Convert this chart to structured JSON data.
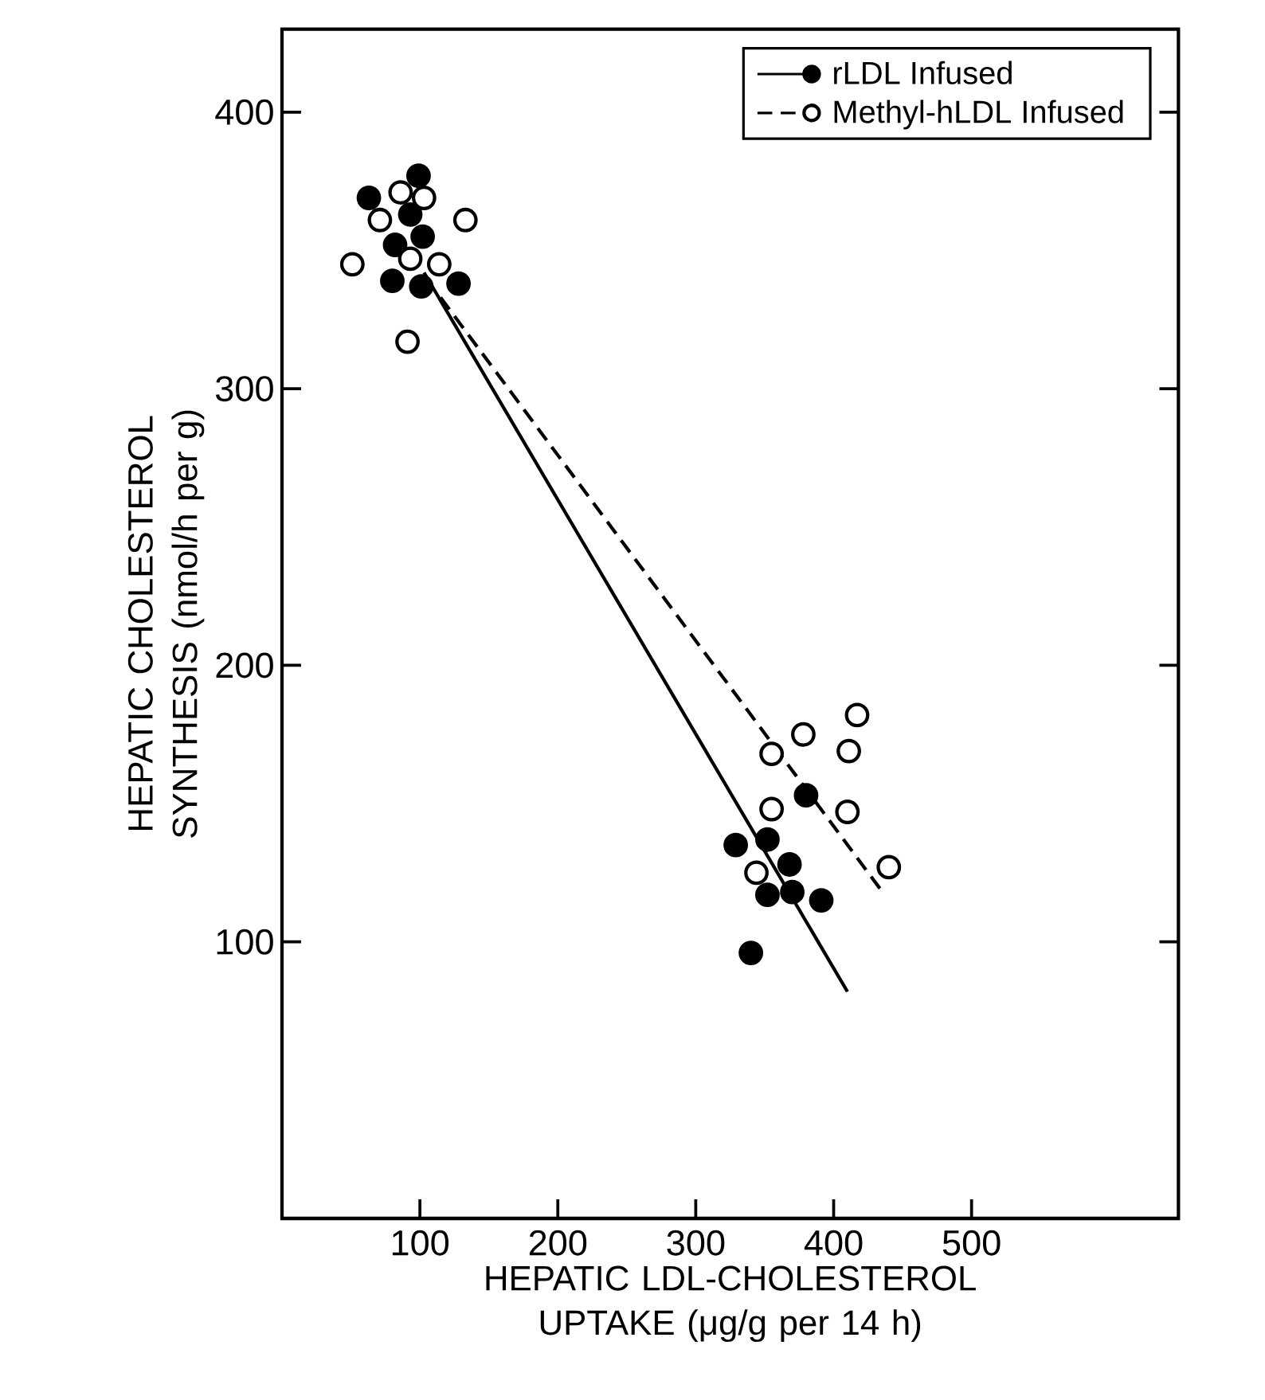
{
  "chart_data": {
    "type": "scatter",
    "xlabel": "HEPATIC LDL-CHOLESTEROL UPTAKE (μg/g per 14 h)",
    "ylabel": "HEPATIC CHOLESTEROL SYNTHESIS (nmol/h per g)",
    "xlim": [
      0,
      650
    ],
    "ylim": [
      0,
      430
    ],
    "xticks": [
      100,
      200,
      300,
      400,
      500
    ],
    "yticks": [
      100,
      200,
      300,
      400
    ],
    "grid": false,
    "legend": "top right",
    "series": [
      {
        "name": "rLDL Infused",
        "marker": "circle",
        "color": "#000000",
        "x": [
          99,
          63,
          93,
          102,
          82,
          80,
          101,
          128,
          380,
          329,
          352,
          368,
          352,
          370,
          391,
          340
        ],
        "values": [
          377,
          369,
          363,
          355,
          352,
          339,
          337,
          338,
          153,
          135,
          137,
          128,
          117,
          118,
          115,
          96
        ]
      },
      {
        "name": "Methyl-hLDL Infused",
        "marker": "circle",
        "color": "#ffffff",
        "x": [
          86,
          103,
          71,
          133,
          51,
          93,
          114,
          91,
          417,
          378,
          355,
          411,
          355,
          410,
          440,
          344
        ],
        "values": [
          371,
          369,
          361,
          361,
          345,
          347,
          345,
          317,
          182,
          175,
          168,
          169,
          148,
          147,
          127,
          125
        ]
      },
      {
        "type": "line",
        "color": "#000000",
        "line_style": "solid",
        "x": [
          103,
          410
        ],
        "values": [
          342,
          82
        ]
      },
      {
        "type": "line",
        "color": "#000000",
        "line_style": "dashed",
        "x": [
          115,
          434
        ],
        "values": [
          333,
          119
        ]
      }
    ]
  }
}
